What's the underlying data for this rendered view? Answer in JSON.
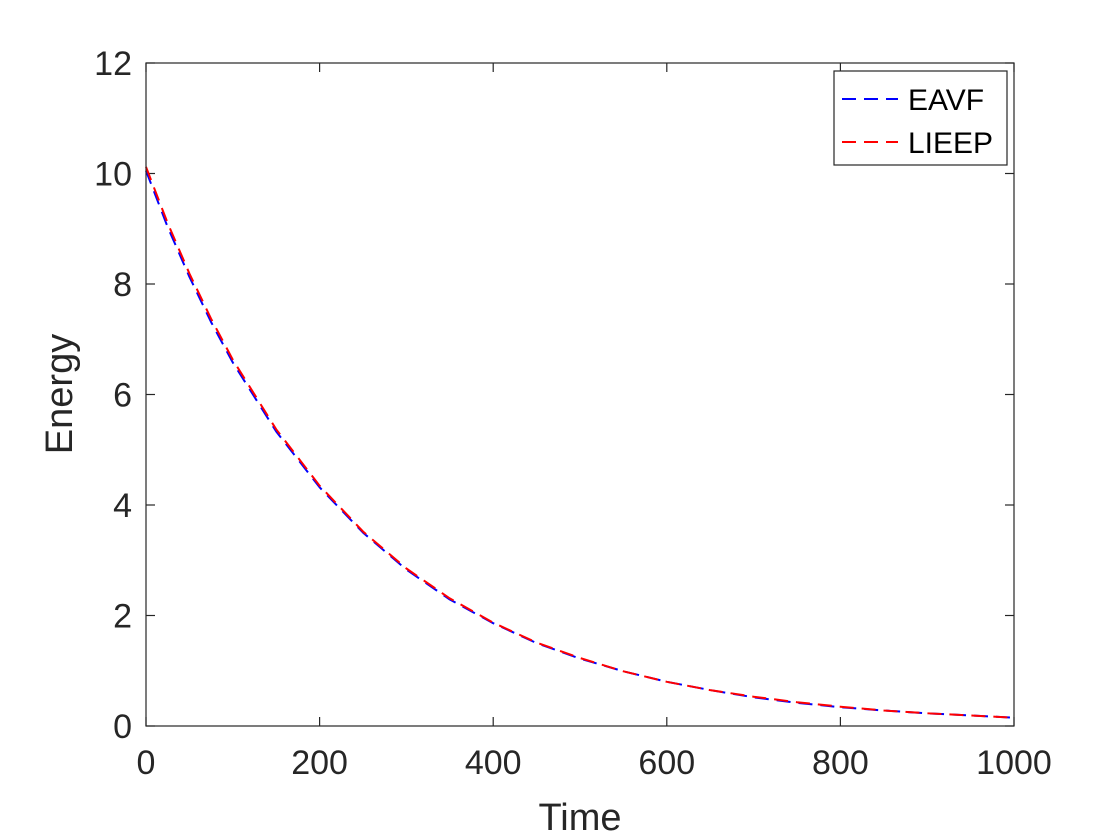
{
  "chart_data": {
    "type": "line",
    "title": "",
    "xlabel": "Time",
    "ylabel": "Energy",
    "xlim": [
      0,
      1000
    ],
    "ylim": [
      0,
      12
    ],
    "xticks": [
      0,
      200,
      400,
      600,
      800,
      1000
    ],
    "yticks": [
      0,
      2,
      4,
      6,
      8,
      10,
      12
    ],
    "grid": false,
    "legend_position": "top-right",
    "x": [
      0,
      25,
      50,
      75,
      100,
      150,
      200,
      250,
      300,
      350,
      400,
      450,
      500,
      550,
      600,
      650,
      700,
      750,
      800,
      850,
      900,
      950,
      1000
    ],
    "series": [
      {
        "name": "EAVF",
        "color": "#0000ff",
        "style": "dashed",
        "values": [
          10.05,
          9.03,
          8.13,
          7.31,
          6.58,
          5.33,
          4.32,
          3.5,
          2.83,
          2.29,
          1.86,
          1.5,
          1.22,
          0.99,
          0.8,
          0.65,
          0.52,
          0.42,
          0.34,
          0.28,
          0.23,
          0.19,
          0.15
        ]
      },
      {
        "name": "LIEEP",
        "color": "#ff0000",
        "style": "dashed",
        "values": [
          10.12,
          9.1,
          8.19,
          7.37,
          6.63,
          5.37,
          4.35,
          3.52,
          2.85,
          2.31,
          1.87,
          1.51,
          1.23,
          0.99,
          0.8,
          0.65,
          0.53,
          0.43,
          0.35,
          0.28,
          0.23,
          0.19,
          0.15
        ]
      }
    ]
  }
}
